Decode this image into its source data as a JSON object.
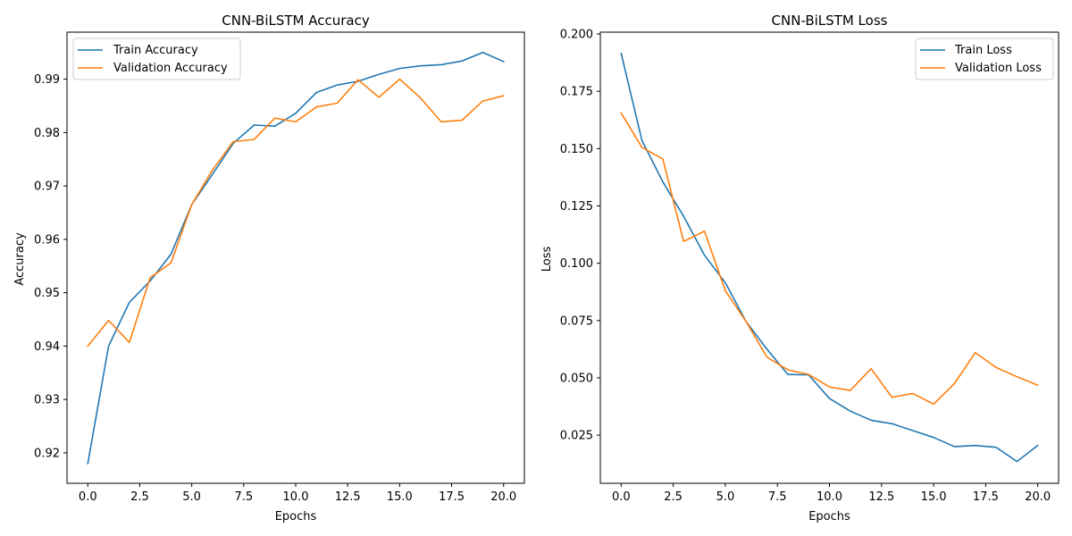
{
  "chart_data": [
    {
      "type": "line",
      "title": "CNN-BiLSTM Accuracy",
      "xlabel": "Epochs",
      "ylabel": "Accuracy",
      "xlim": [
        -1,
        21
      ],
      "ylim": [
        0.9143,
        0.9988
      ],
      "xticks": [
        0,
        2.5,
        5,
        7.5,
        10,
        12.5,
        15,
        17.5,
        20
      ],
      "xtick_labels": [
        "0.0",
        "2.5",
        "5.0",
        "7.5",
        "10.0",
        "12.5",
        "15.0",
        "17.5",
        "20.0"
      ],
      "yticks": [
        0.92,
        0.93,
        0.94,
        0.95,
        0.96,
        0.97,
        0.98,
        0.99
      ],
      "ytick_labels": [
        "0.92",
        "0.93",
        "0.94",
        "0.95",
        "0.96",
        "0.97",
        "0.98",
        "0.99"
      ],
      "legend_position": "top-left",
      "x": [
        0,
        1,
        2,
        3,
        4,
        5,
        6,
        7,
        8,
        9,
        10,
        11,
        12,
        13,
        14,
        15,
        16,
        17,
        18,
        19,
        20
      ],
      "series": [
        {
          "name": "Train Accuracy",
          "color": "#1f77b4",
          "values": [
            0.918,
            0.94,
            0.9482,
            0.9522,
            0.9572,
            0.9665,
            0.9722,
            0.978,
            0.9814,
            0.9812,
            0.9836,
            0.9875,
            0.9889,
            0.9896,
            0.9909,
            0.992,
            0.9925,
            0.9927,
            0.9934,
            0.995,
            0.9933
          ]
        },
        {
          "name": "Validation Accuracy",
          "color": "#ff7f0e",
          "values": [
            0.94,
            0.9448,
            0.9407,
            0.9528,
            0.9556,
            0.9665,
            0.973,
            0.9783,
            0.9787,
            0.9827,
            0.982,
            0.9848,
            0.9855,
            0.9899,
            0.9866,
            0.99,
            0.9865,
            0.982,
            0.9823,
            0.9859,
            0.9869
          ]
        }
      ]
    },
    {
      "type": "line",
      "title": "CNN-BiLSTM Loss",
      "xlabel": "Epochs",
      "ylabel": "Loss",
      "xlim": [
        -1,
        21
      ],
      "ylim": [
        0.004,
        0.2008
      ],
      "xticks": [
        0,
        2.5,
        5,
        7.5,
        10,
        12.5,
        15,
        17.5,
        20
      ],
      "xtick_labels": [
        "0.0",
        "2.5",
        "5.0",
        "7.5",
        "10.0",
        "12.5",
        "15.0",
        "17.5",
        "20.0"
      ],
      "yticks": [
        0.025,
        0.05,
        0.075,
        0.1,
        0.125,
        0.15,
        0.175,
        0.2
      ],
      "ytick_labels": [
        "0.025",
        "0.050",
        "0.075",
        "0.100",
        "0.125",
        "0.150",
        "0.175",
        "0.200"
      ],
      "legend_position": "top-right",
      "x": [
        0,
        1,
        2,
        3,
        4,
        5,
        6,
        7,
        8,
        9,
        10,
        11,
        12,
        13,
        14,
        15,
        16,
        17,
        18,
        19,
        20
      ],
      "series": [
        {
          "name": "Train Loss",
          "color": "#1f77b4",
          "values": [
            0.1915,
            0.1535,
            0.1355,
            0.1205,
            0.1035,
            0.0915,
            0.0745,
            0.0625,
            0.0515,
            0.0513,
            0.041,
            0.0355,
            0.0315,
            0.03,
            0.027,
            0.024,
            0.02,
            0.0205,
            0.0197,
            0.0135,
            0.0205
          ]
        },
        {
          "name": "Validation Loss",
          "color": "#ff7f0e",
          "values": [
            0.1655,
            0.1505,
            0.1455,
            0.1095,
            0.114,
            0.088,
            0.0745,
            0.059,
            0.0535,
            0.0515,
            0.046,
            0.0445,
            0.054,
            0.0415,
            0.0432,
            0.0385,
            0.0475,
            0.061,
            0.0545,
            0.0505,
            0.0468
          ]
        }
      ]
    }
  ]
}
